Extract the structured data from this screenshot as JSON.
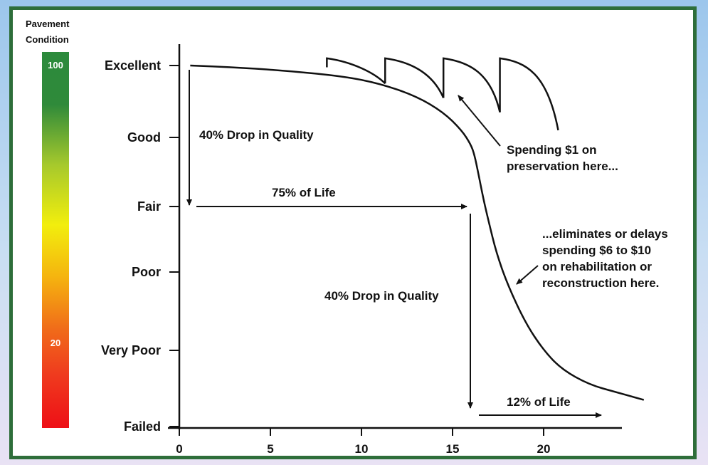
{
  "scale": {
    "title_line1": "Pavement",
    "title_line2": "Condition",
    "top_label": "100",
    "low_label": "20",
    "gradient_colors": [
      "#2c8a3c",
      "#2f8a3a",
      "#a6c92c",
      "#f2ee0d",
      "#f5b30f",
      "#f06a1a",
      "#ef3a1e",
      "#ee0f16"
    ]
  },
  "chart_data": {
    "type": "line",
    "title": "",
    "xlabel": "",
    "ylabel": "",
    "x_ticks": [
      "0",
      "5",
      "10",
      "15",
      "20"
    ],
    "y_categories": [
      "Excellent",
      "Good",
      "Fair",
      "Poor",
      "Very Poor",
      "Failed"
    ],
    "xlim": [
      0,
      24
    ],
    "grid": false,
    "series": [
      {
        "points": [
          [
            0.6,
            100
          ],
          [
            3,
            99.5
          ],
          [
            6,
            98.5
          ],
          [
            9,
            97
          ],
          [
            11,
            95
          ],
          [
            13,
            91.5
          ],
          [
            14.5,
            87
          ],
          [
            15.5,
            82
          ],
          [
            16,
            78
          ],
          [
            16.2,
            75
          ],
          [
            16.4,
            70
          ],
          [
            16.7,
            62
          ],
          [
            17,
            55
          ],
          [
            17.4,
            46
          ],
          [
            18,
            37
          ],
          [
            19,
            27
          ],
          [
            20,
            20
          ],
          [
            21,
            15
          ],
          [
            22.5,
            11
          ],
          [
            24,
            9
          ],
          [
            25.5,
            7
          ]
        ],
        "color": "#111111"
      },
      {
        "segments": [
          [
            [
              8.1,
              99.5
            ],
            [
              8.1,
              102
            ],
            [
              9.5,
              101
            ],
            [
              10.7,
              98
            ],
            [
              11.3,
              95
            ]
          ],
          [
            [
              11.3,
              95
            ],
            [
              11.3,
              102
            ],
            [
              12.7,
              101
            ],
            [
              13.9,
              98
            ],
            [
              14.5,
              91
            ]
          ],
          [
            [
              14.5,
              91
            ],
            [
              14.5,
              102
            ],
            [
              15.9,
              101
            ],
            [
              17.1,
              98
            ],
            [
              17.6,
              87
            ]
          ],
          [
            [
              17.6,
              87
            ],
            [
              17.6,
              102
            ],
            [
              19,
              101
            ],
            [
              20.2,
              98
            ],
            [
              20.8,
              82
            ]
          ]
        ],
        "color": "#111111"
      }
    ],
    "annotations": [
      "40% Drop in Quality",
      "75% of Life",
      "40% Drop in Quality",
      "12% of Life",
      "Spending $1 on",
      "preservation here...",
      "...eliminates or delays",
      "spending $6 to $10",
      "on rehabilitation or",
      "reconstruction here."
    ]
  }
}
